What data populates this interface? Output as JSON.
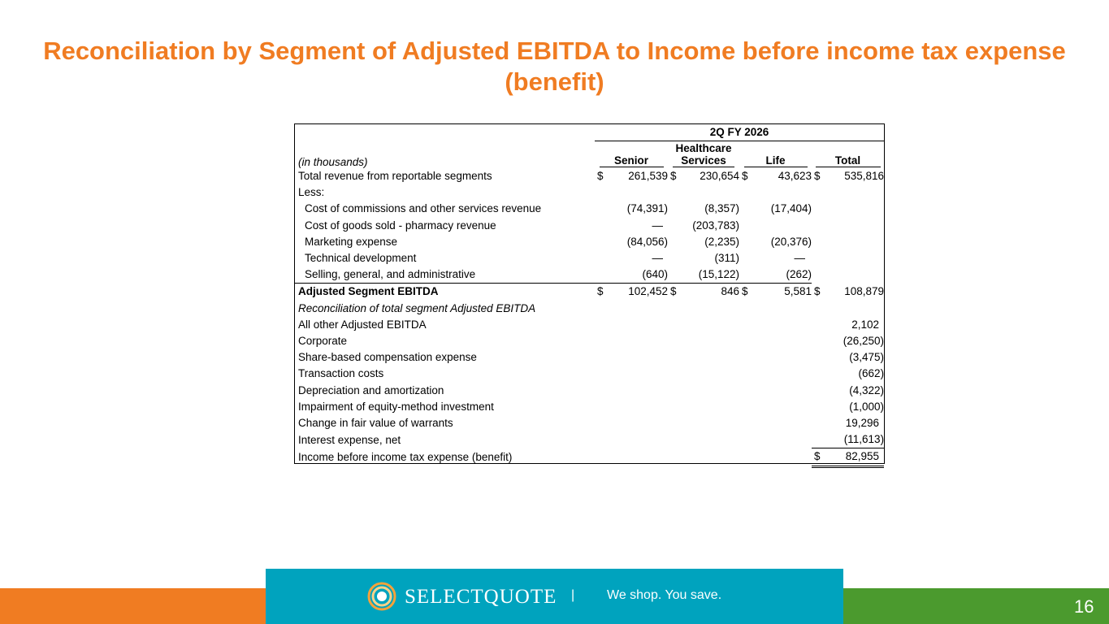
{
  "title": "Reconciliation by Segment of Adjusted EBITDA to Income before income tax expense (benefit)",
  "table": {
    "period": "2Q FY 2026",
    "units_label": "(in thousands)",
    "columns": [
      "Senior",
      "Healthcare Services",
      "Life",
      "Total"
    ],
    "col_healthcare_line1": "Healthcare",
    "col_healthcare_line2": "Services",
    "currency": "$",
    "rows": {
      "total_revenue": {
        "label": "Total revenue from reportable segments",
        "senior": "261,539",
        "healthcare": "230,654",
        "life": "43,623",
        "total": "535,816"
      },
      "less": {
        "label": "Less:"
      },
      "cost_commissions": {
        "label": "Cost of commissions and other services revenue",
        "senior": "(74,391)",
        "healthcare": "(8,357)",
        "life": "(17,404)"
      },
      "cost_goods": {
        "label": "Cost of goods sold - pharmacy revenue",
        "senior": "—",
        "healthcare": "(203,783)"
      },
      "marketing": {
        "label": "Marketing expense",
        "senior": "(84,056)",
        "healthcare": "(2,235)",
        "life": "(20,376)"
      },
      "tech_dev": {
        "label": "Technical development",
        "senior": "—",
        "healthcare": "(311)",
        "life": "—"
      },
      "sga": {
        "label": "Selling, general, and administrative",
        "senior": "(640)",
        "healthcare": "(15,122)",
        "life": "(262)"
      },
      "adj_ebitda": {
        "label": "Adjusted Segment EBITDA",
        "senior": "102,452",
        "healthcare": "846",
        "life": "5,581",
        "total": "108,879"
      },
      "recon_heading": {
        "label": "Reconciliation of total segment Adjusted EBITDA"
      },
      "all_other": {
        "label": "All other Adjusted EBITDA",
        "total": "2,102"
      },
      "corporate": {
        "label": "Corporate",
        "total": "(26,250)"
      },
      "share_based": {
        "label": "Share-based compensation expense",
        "total": "(3,475)"
      },
      "transaction": {
        "label": "Transaction costs",
        "total": "(662)"
      },
      "depreciation": {
        "label": "Depreciation and amortization",
        "total": "(4,322)"
      },
      "impairment": {
        "label": "Impairment of equity-method investment",
        "total": "(1,000)"
      },
      "warrants": {
        "label": "Change in fair value of warrants",
        "total": "19,296"
      },
      "interest": {
        "label": "Interest expense, net",
        "total": "(11,613)"
      },
      "income_before_tax": {
        "label": "Income before income tax expense (benefit)",
        "total": "82,955"
      }
    }
  },
  "footer": {
    "brand": "SELECTQUOTE",
    "separator": "|",
    "tagline": "We shop. You save.",
    "page_number": "16",
    "colors": {
      "orange": "#f07c22",
      "teal": "#00a3be",
      "green": "#4b9a2e"
    },
    "logo_icon": "selectquote-logo-icon"
  }
}
